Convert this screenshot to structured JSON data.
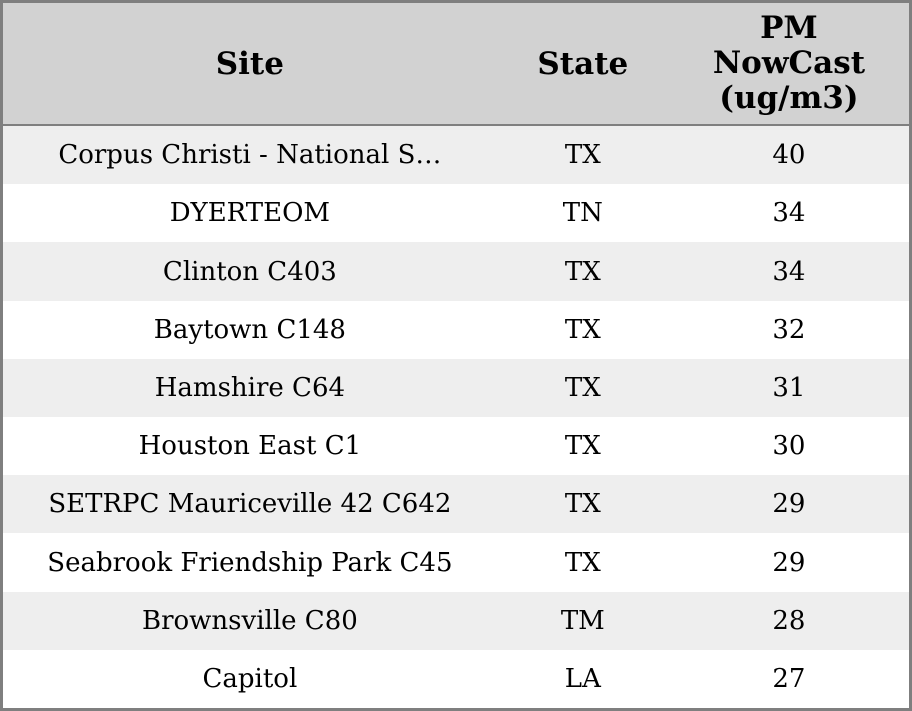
{
  "header": {
    "columns": [
      {
        "id": "site",
        "label": "Site"
      },
      {
        "id": "state",
        "label": "State"
      },
      {
        "id": "pm_nowcast",
        "label": "PM NowCast (ug/m3)",
        "label_lines": [
          "PM",
          "NowCast",
          "(ug/m3)"
        ]
      }
    ]
  },
  "rows": [
    {
      "site": "Corpus Christi - National S…",
      "state": "TX",
      "pm": "40"
    },
    {
      "site": "DYERTEOM",
      "state": "TN",
      "pm": "34"
    },
    {
      "site": "Clinton C403",
      "state": "TX",
      "pm": "34"
    },
    {
      "site": "Baytown C148",
      "state": "TX",
      "pm": "32"
    },
    {
      "site": "Hamshire C64",
      "state": "TX",
      "pm": "31"
    },
    {
      "site": "Houston East C1",
      "state": "TX",
      "pm": "30"
    },
    {
      "site": "SETRPC Mauriceville 42 C642",
      "state": "TX",
      "pm": "29"
    },
    {
      "site": "Seabrook Friendship Park C45",
      "state": "TX",
      "pm": "29"
    },
    {
      "site": "Brownsville C80",
      "state": "TM",
      "pm": "28"
    },
    {
      "site": "Capitol",
      "state": "LA",
      "pm": "27"
    }
  ],
  "colors": {
    "header_bg": "#d2d2d2",
    "row_stripe_bg": "#eeeeee",
    "row_bg": "#ffffff",
    "border": "#7f7f7f",
    "text": "#000000"
  }
}
